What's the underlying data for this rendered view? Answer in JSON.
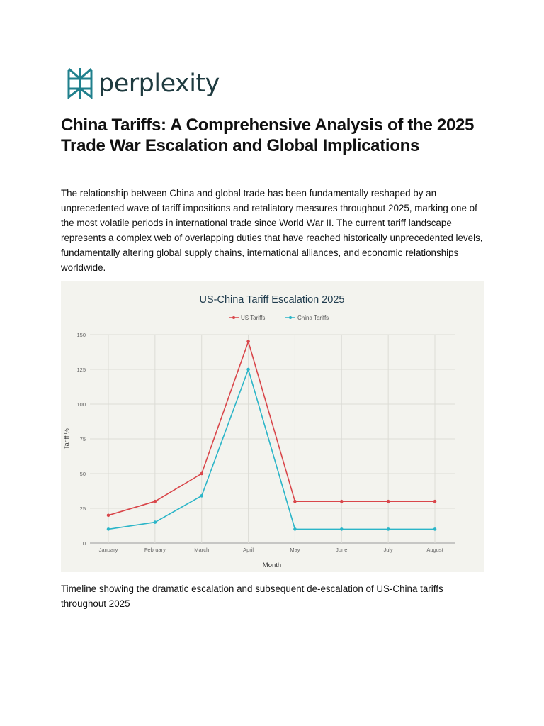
{
  "brand": {
    "name": "perplexity",
    "icon": "perplexity-logo-icon",
    "color": "#1f3b40",
    "accent": "#20808d"
  },
  "article": {
    "title": "China Tariffs: A Comprehensive Analysis of the 2025 Trade War Escalation and Global Implications",
    "intro": "The relationship between China and global trade has been fundamentally reshaped by an unprecedented wave of tariff impositions and retaliatory measures throughout 2025, marking one of the most volatile periods in international trade since World War II. The current tariff landscape represents a complex web of overlapping duties that have reached historically unprecedented levels, fundamentally altering global supply chains, international alliances, and economic relationships worldwide.",
    "caption": "Timeline showing the dramatic escalation and subsequent de-escalation of US-China tariffs throughout 2025"
  },
  "chart_data": {
    "type": "line",
    "title": "US-China Tariff Escalation 2025",
    "xlabel": "Month",
    "ylabel": "Tariff %",
    "categories": [
      "January",
      "February",
      "March",
      "April",
      "May",
      "June",
      "July",
      "August"
    ],
    "series": [
      {
        "name": "US Tariffs",
        "color": "#d9464a",
        "values": [
          20,
          30,
          50,
          145,
          30,
          30,
          30,
          30
        ]
      },
      {
        "name": "China Tariffs",
        "color": "#2bb5c8",
        "values": [
          10,
          15,
          34,
          125,
          10,
          10,
          10,
          10
        ]
      }
    ],
    "ylim": [
      0,
      150
    ],
    "yticks": [
      0,
      25,
      50,
      75,
      100,
      125,
      150
    ],
    "grid": true,
    "legend": "top-center"
  }
}
